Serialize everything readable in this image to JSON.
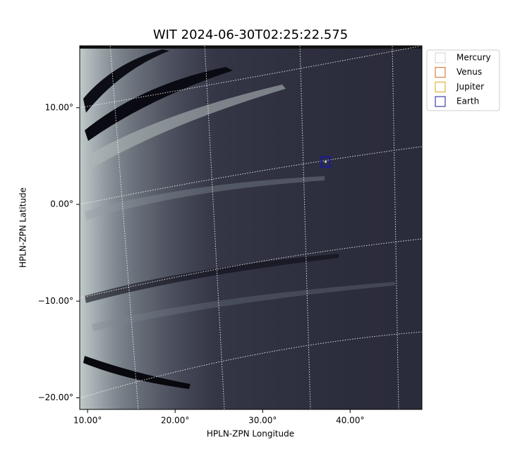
{
  "chart_data": {
    "type": "scatter",
    "title": "WIT 2024-06-30T02:25:22.575",
    "x_label": "HPLN-ZPN Longitude",
    "y_label": "HPLN-ZPN Latitude",
    "xlim": [
      9.1,
      48.2
    ],
    "ylim": [
      -21.2,
      16.4
    ],
    "xticks": [
      {
        "value": 10,
        "label": "10.00°"
      },
      {
        "value": 20,
        "label": "20.00°"
      },
      {
        "value": 30,
        "label": "30.00°"
      },
      {
        "value": 40,
        "label": "40.00°"
      }
    ],
    "yticks": [
      {
        "value": -20,
        "label": "−20.00°"
      },
      {
        "value": -10,
        "label": "−10.00°"
      },
      {
        "value": 0,
        "label": "0.00°"
      },
      {
        "value": 10,
        "label": "10.00°"
      }
    ],
    "legend": "upper right",
    "series": [
      {
        "name": "Mercury",
        "color": "#d3d3d3"
      },
      {
        "name": "Venus",
        "color": "#d2691e"
      },
      {
        "name": "Jupiter",
        "color": "#daa520"
      },
      {
        "name": "Earth",
        "color": "#1a1aa0",
        "x": [
          37.2
        ],
        "y": [
          4.4
        ]
      }
    ]
  }
}
